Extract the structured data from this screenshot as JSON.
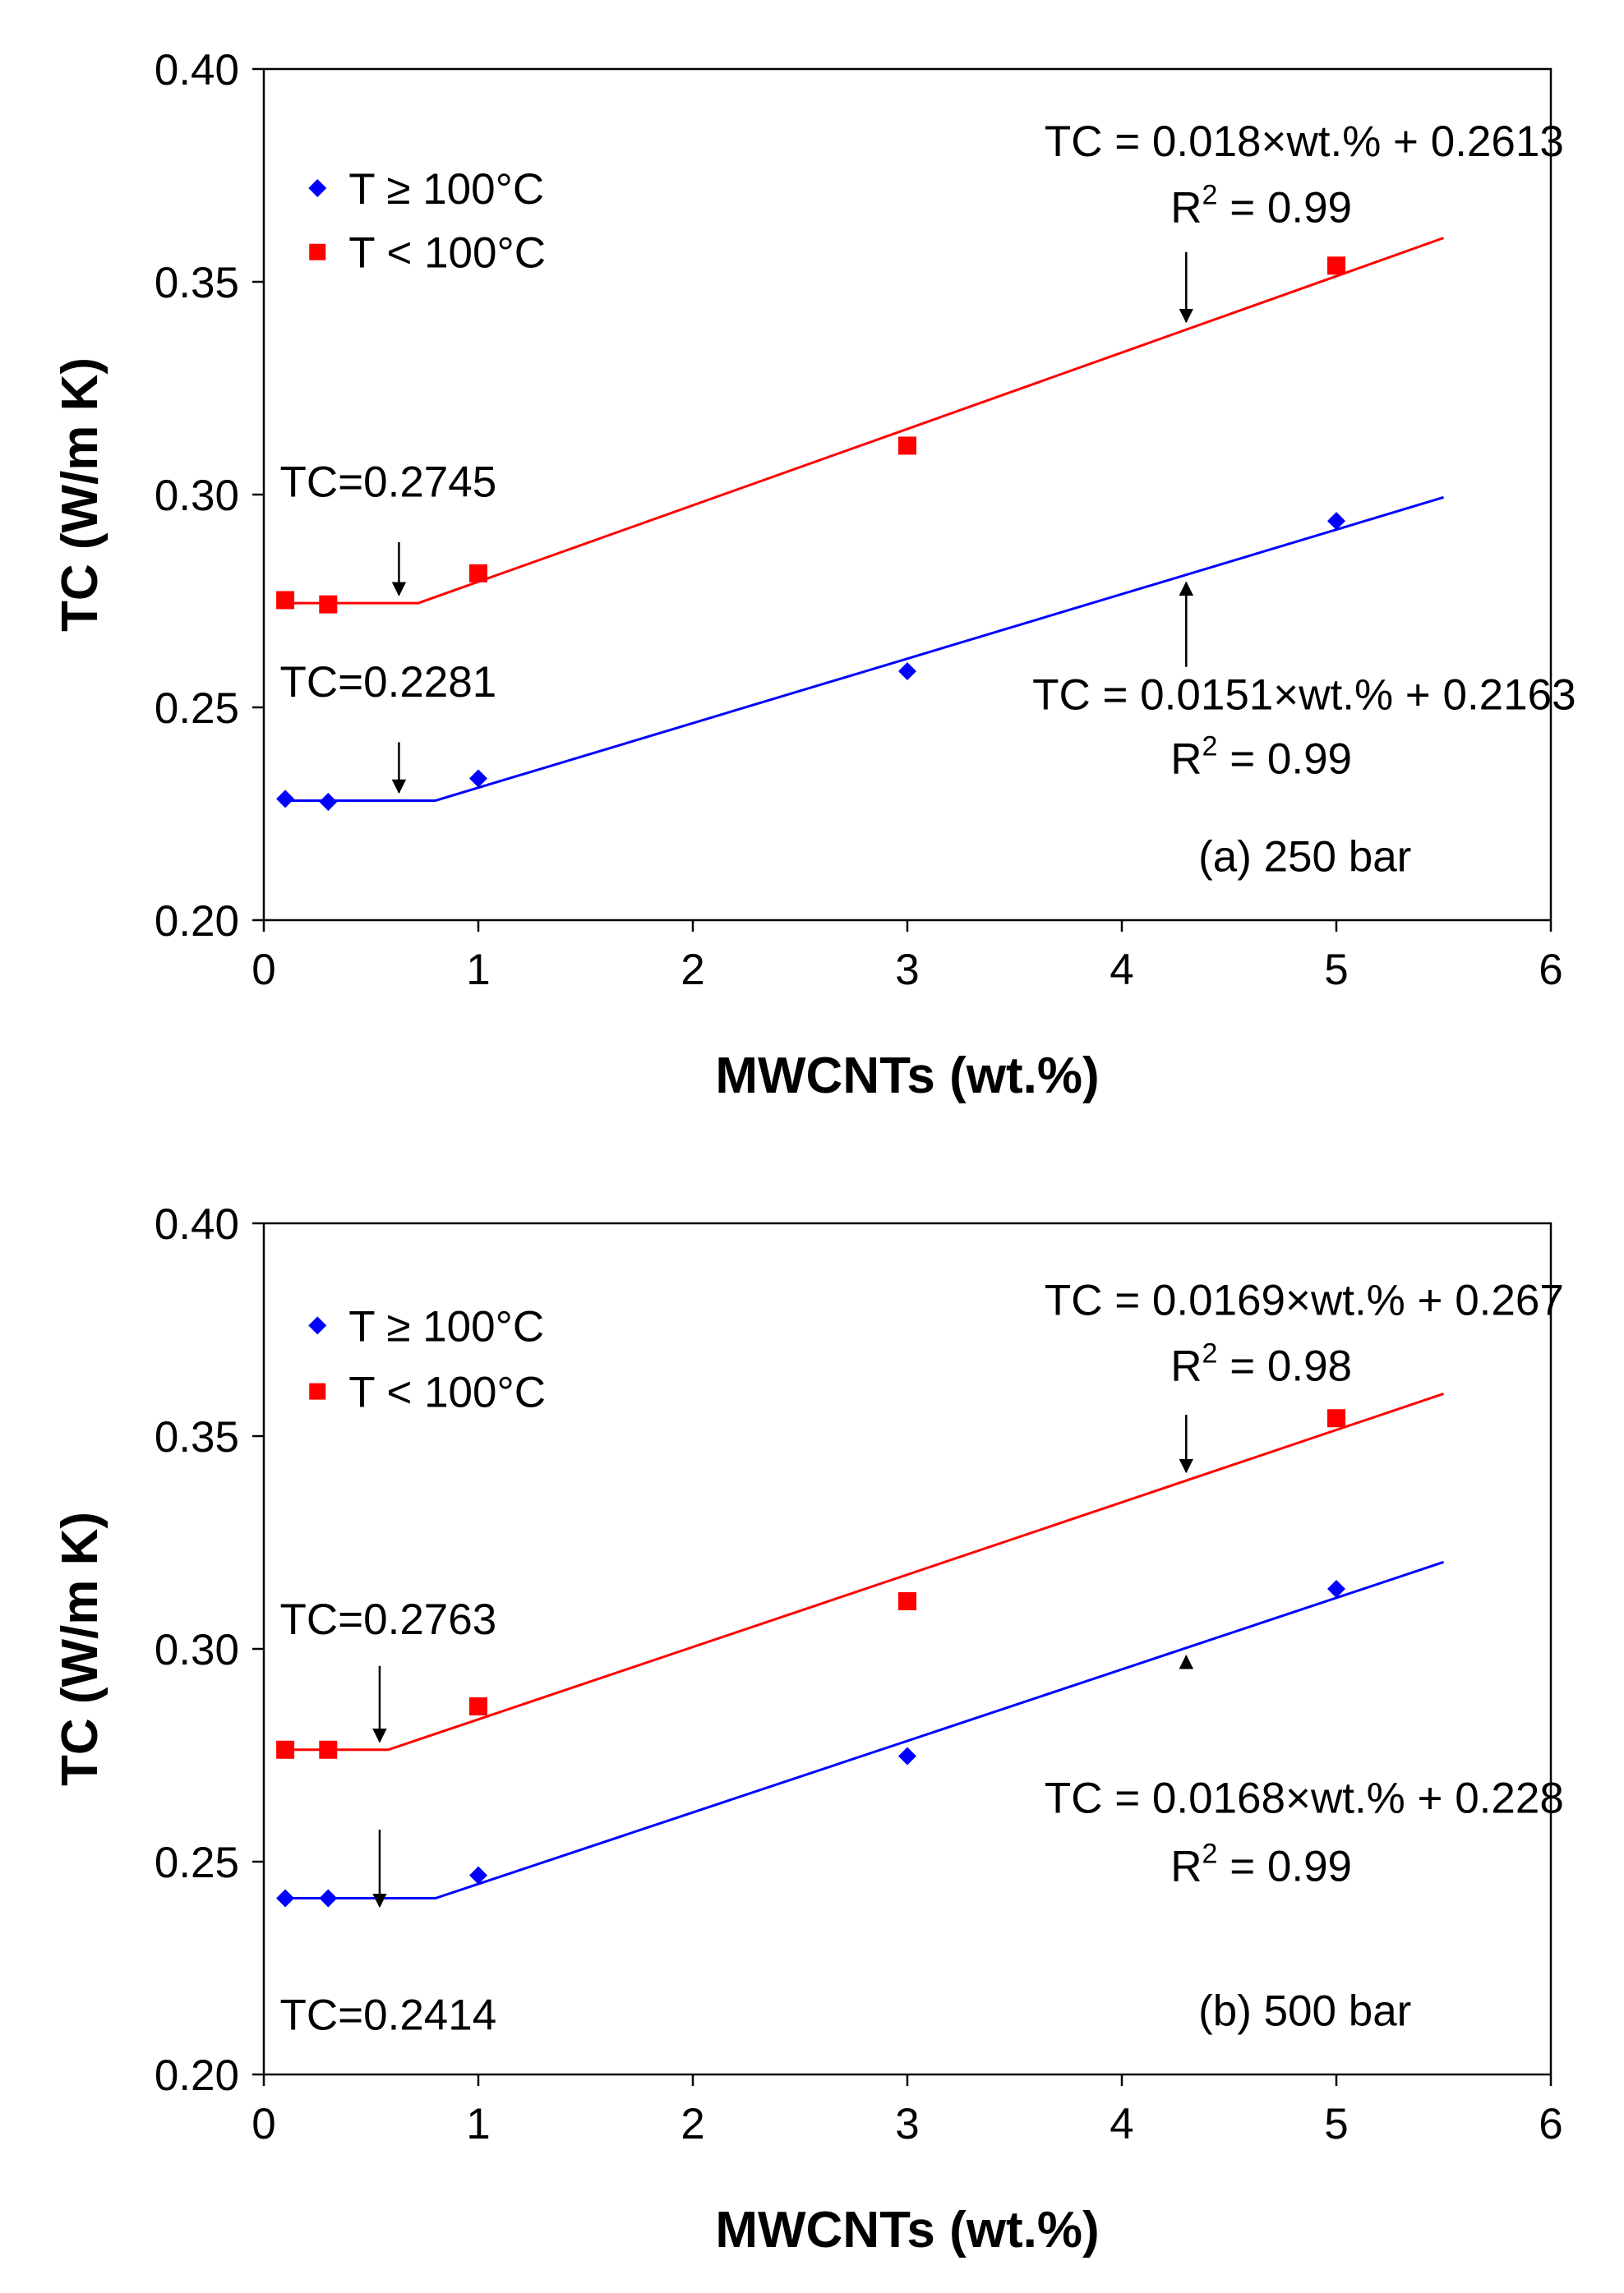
{
  "colors": {
    "series_high": "#0000ff",
    "series_low": "#ff0000",
    "axis": "#000000"
  },
  "chart_data": [
    {
      "type": "scatter",
      "title": "",
      "xlabel": "MWCNTs (wt.%)",
      "ylabel": "TC (W/m K)",
      "xlim": [
        0,
        6
      ],
      "ylim": [
        0.2,
        0.4
      ],
      "xticks": [
        0,
        1,
        2,
        3,
        4,
        5,
        6
      ],
      "xtick_labels": [
        "0",
        "1",
        "2",
        "3",
        "4",
        "5",
        "6"
      ],
      "yticks": [
        0.2,
        0.25,
        0.3,
        0.35,
        0.4
      ],
      "ytick_labels": [
        "0.20",
        "0.25",
        "0.30",
        "0.35",
        "0.40"
      ],
      "grid": false,
      "legend_position": "top-left",
      "panel_label": "(a) 250 bar",
      "series": [
        {
          "name": "T ≥ 100°C",
          "marker": "diamond",
          "color": "#0000ff",
          "points": [
            [
              0.1,
              0.2285
            ],
            [
              0.3,
              0.2278
            ],
            [
              1,
              0.2333
            ],
            [
              3,
              0.2585
            ],
            [
              5,
              0.2938
            ]
          ],
          "fit": {
            "plateau": 0.2281,
            "break_x": 0.8,
            "slope": 0.0151,
            "intercept": 0.2163,
            "x_end": 5.5
          }
        },
        {
          "name": "T < 100°C",
          "marker": "square",
          "color": "#ff0000",
          "points": [
            [
              0.1,
              0.2752
            ],
            [
              0.3,
              0.2742
            ],
            [
              1,
              0.2815
            ],
            [
              3,
              0.3115
            ],
            [
              5,
              0.3538
            ]
          ],
          "fit": {
            "plateau": 0.2745,
            "break_x": 0.72,
            "slope": 0.018,
            "intercept": 0.2613,
            "x_end": 5.5
          }
        }
      ],
      "annotations": [
        {
          "text": "TC = 0.018×wt.% + 0.2613",
          "r2": "0.99",
          "series": 1,
          "arrow_x": 4.3,
          "side": "above"
        },
        {
          "text": "TC = 0.0151×wt.% + 0.2163",
          "r2": "0.99",
          "series": 0,
          "arrow_x": 4.3,
          "side": "below"
        },
        {
          "text": "TC=0.2745",
          "series": 1,
          "arrow_x": 0.63,
          "side": "above"
        },
        {
          "text": "TC=0.2281",
          "series": 0,
          "arrow_x": 0.63,
          "side": "above"
        }
      ]
    },
    {
      "type": "scatter",
      "title": "",
      "xlabel": "MWCNTs (wt.%)",
      "ylabel": "TC (W/m K)",
      "xlim": [
        0,
        6
      ],
      "ylim": [
        0.2,
        0.4
      ],
      "xticks": [
        0,
        1,
        2,
        3,
        4,
        5,
        6
      ],
      "xtick_labels": [
        "0",
        "1",
        "2",
        "3",
        "4",
        "5",
        "6"
      ],
      "yticks": [
        0.2,
        0.25,
        0.3,
        0.35,
        0.4
      ],
      "ytick_labels": [
        "0.20",
        "0.25",
        "0.30",
        "0.35",
        "0.40"
      ],
      "grid": false,
      "legend_position": "top-left",
      "panel_label": "(b) 500 bar",
      "series": [
        {
          "name": "T ≥ 100°C",
          "marker": "diamond",
          "color": "#0000ff",
          "points": [
            [
              0.1,
              0.2414
            ],
            [
              0.3,
              0.2414
            ],
            [
              1,
              0.2468
            ],
            [
              3,
              0.2748
            ],
            [
              5,
              0.3141
            ]
          ],
          "fit": {
            "plateau": 0.2414,
            "break_x": 0.8,
            "slope": 0.0168,
            "intercept": 0.228,
            "x_end": 5.5
          }
        },
        {
          "name": "T < 100°C",
          "marker": "square",
          "color": "#ff0000",
          "points": [
            [
              0.1,
              0.2763
            ],
            [
              0.3,
              0.2763
            ],
            [
              1,
              0.2865
            ],
            [
              3,
              0.3112
            ],
            [
              5,
              0.3542
            ]
          ],
          "fit": {
            "plateau": 0.2763,
            "break_x": 0.58,
            "slope": 0.0169,
            "intercept": 0.267,
            "x_end": 5.5
          }
        }
      ],
      "annotations": [
        {
          "text": "TC = 0.0169×wt.% + 0.267",
          "r2": "0.98",
          "series": 1,
          "arrow_x": 4.3,
          "side": "above"
        },
        {
          "text": "TC = 0.0168×wt.% + 0.228",
          "r2": "0.99",
          "series": 0,
          "arrow_x": 4.3,
          "side": "below"
        },
        {
          "text": "TC=0.2763",
          "series": 1,
          "arrow_x": 0.54,
          "side": "above"
        },
        {
          "text": "TC=0.2414",
          "series": 0,
          "arrow_x": 0.54,
          "side": "below"
        }
      ]
    }
  ]
}
